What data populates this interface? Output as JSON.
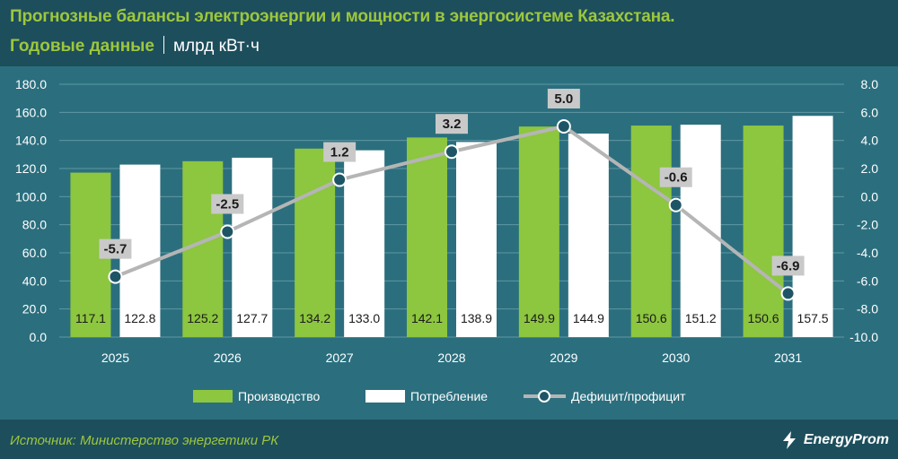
{
  "header": {
    "title": "Прогнозные балансы электроэнергии и мощности в энергосистеме Казахстана.",
    "subtitle": "Годовые данные",
    "unit": "млрд кВт·ч"
  },
  "footer": {
    "source": "Источник: Министерство энергетики РК",
    "logo_text": "EnergyProm"
  },
  "colors": {
    "production": "#8dc63f",
    "consumption": "#ffffff",
    "balance_line": "#b5b5b5",
    "balance_marker": "#1e5566"
  },
  "chart_data": {
    "type": "bar",
    "categories": [
      "2025",
      "2026",
      "2027",
      "2028",
      "2029",
      "2030",
      "2031"
    ],
    "series": [
      {
        "name": "Производство",
        "type": "bar",
        "axis": "left",
        "values": [
          117.1,
          125.2,
          134.2,
          142.1,
          149.9,
          150.6,
          150.6
        ]
      },
      {
        "name": "Потребление",
        "type": "bar",
        "axis": "left",
        "values": [
          122.8,
          127.7,
          133.0,
          138.9,
          144.9,
          151.2,
          157.5
        ]
      },
      {
        "name": "Дефицит/профицит",
        "type": "line",
        "axis": "right",
        "values": [
          -5.7,
          -2.5,
          1.2,
          3.2,
          5.0,
          -0.6,
          -6.9
        ]
      }
    ],
    "ylim": [
      0,
      180
    ],
    "y2lim": [
      -10,
      8
    ],
    "yticks": [
      "180.0",
      "160.0",
      "140.0",
      "120.0",
      "100.0",
      "80.0",
      "60.0",
      "40.0",
      "20.0",
      "0.0"
    ],
    "y2ticks": [
      "8.0",
      "6.0",
      "4.0",
      "2.0",
      "0.0",
      "-2.0",
      "-4.0",
      "-6.0",
      "-8.0",
      "-10.0"
    ],
    "grid": true,
    "legend": "bottom"
  }
}
